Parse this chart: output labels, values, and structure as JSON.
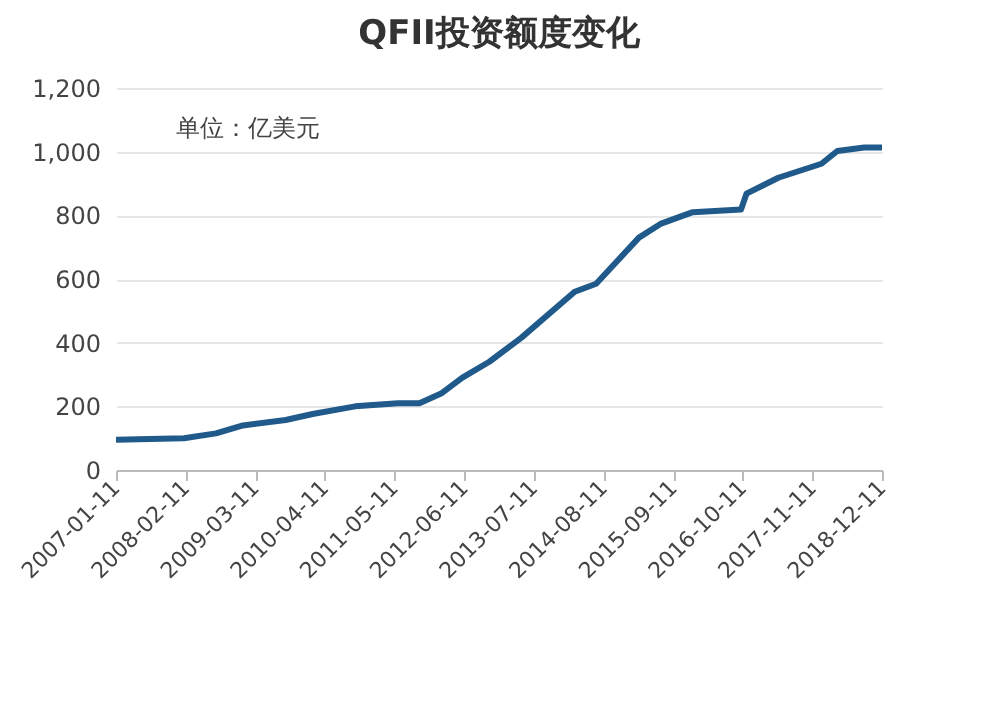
{
  "chart_data": {
    "type": "line",
    "title": "QFII投资额度变化",
    "annotations": [
      "单位：亿美元"
    ],
    "x": [
      "2007-01-11",
      "2008-02",
      "2008-08",
      "2009-01",
      "2009-09",
      "2010-02",
      "2010-10",
      "2011-06",
      "2011-10",
      "2012-02",
      "2012-06",
      "2012-11",
      "2013-05",
      "2014-03",
      "2014-07",
      "2015-03",
      "2015-07",
      "2016-01",
      "2016-10",
      "2016-11",
      "2017-05",
      "2018-01",
      "2018-04",
      "2018-09",
      "2018-12-11"
    ],
    "series": [
      {
        "color": "#1f5a8a",
        "values": [
          95,
          100,
          115,
          140,
          157,
          176,
          200,
          210,
          210,
          240,
          290,
          340,
          415,
          560,
          585,
          730,
          773,
          810,
          818,
          868,
          918,
          962,
          1002,
          1013,
          1013
        ]
      }
    ],
    "xlim": [
      "2007-01-11",
      "2018-12-11"
    ],
    "xticks": [
      "2007-01-11",
      "2008-02-11",
      "2009-03-11",
      "2010-04-11",
      "2011-05-11",
      "2012-06-11",
      "2013-07-11",
      "2014-08-11",
      "2015-09-11",
      "2016-10-11",
      "2017-11-11",
      "2018-12-11"
    ],
    "ylim": [
      0,
      1200
    ],
    "yticks": [
      0,
      200,
      400,
      600,
      800,
      {
        "value": 1000,
        "label": "1,000"
      },
      {
        "value": 1200,
        "label": "1,200"
      }
    ],
    "grid": "y",
    "legend": false,
    "marker": "none",
    "line_style": "solid"
  }
}
